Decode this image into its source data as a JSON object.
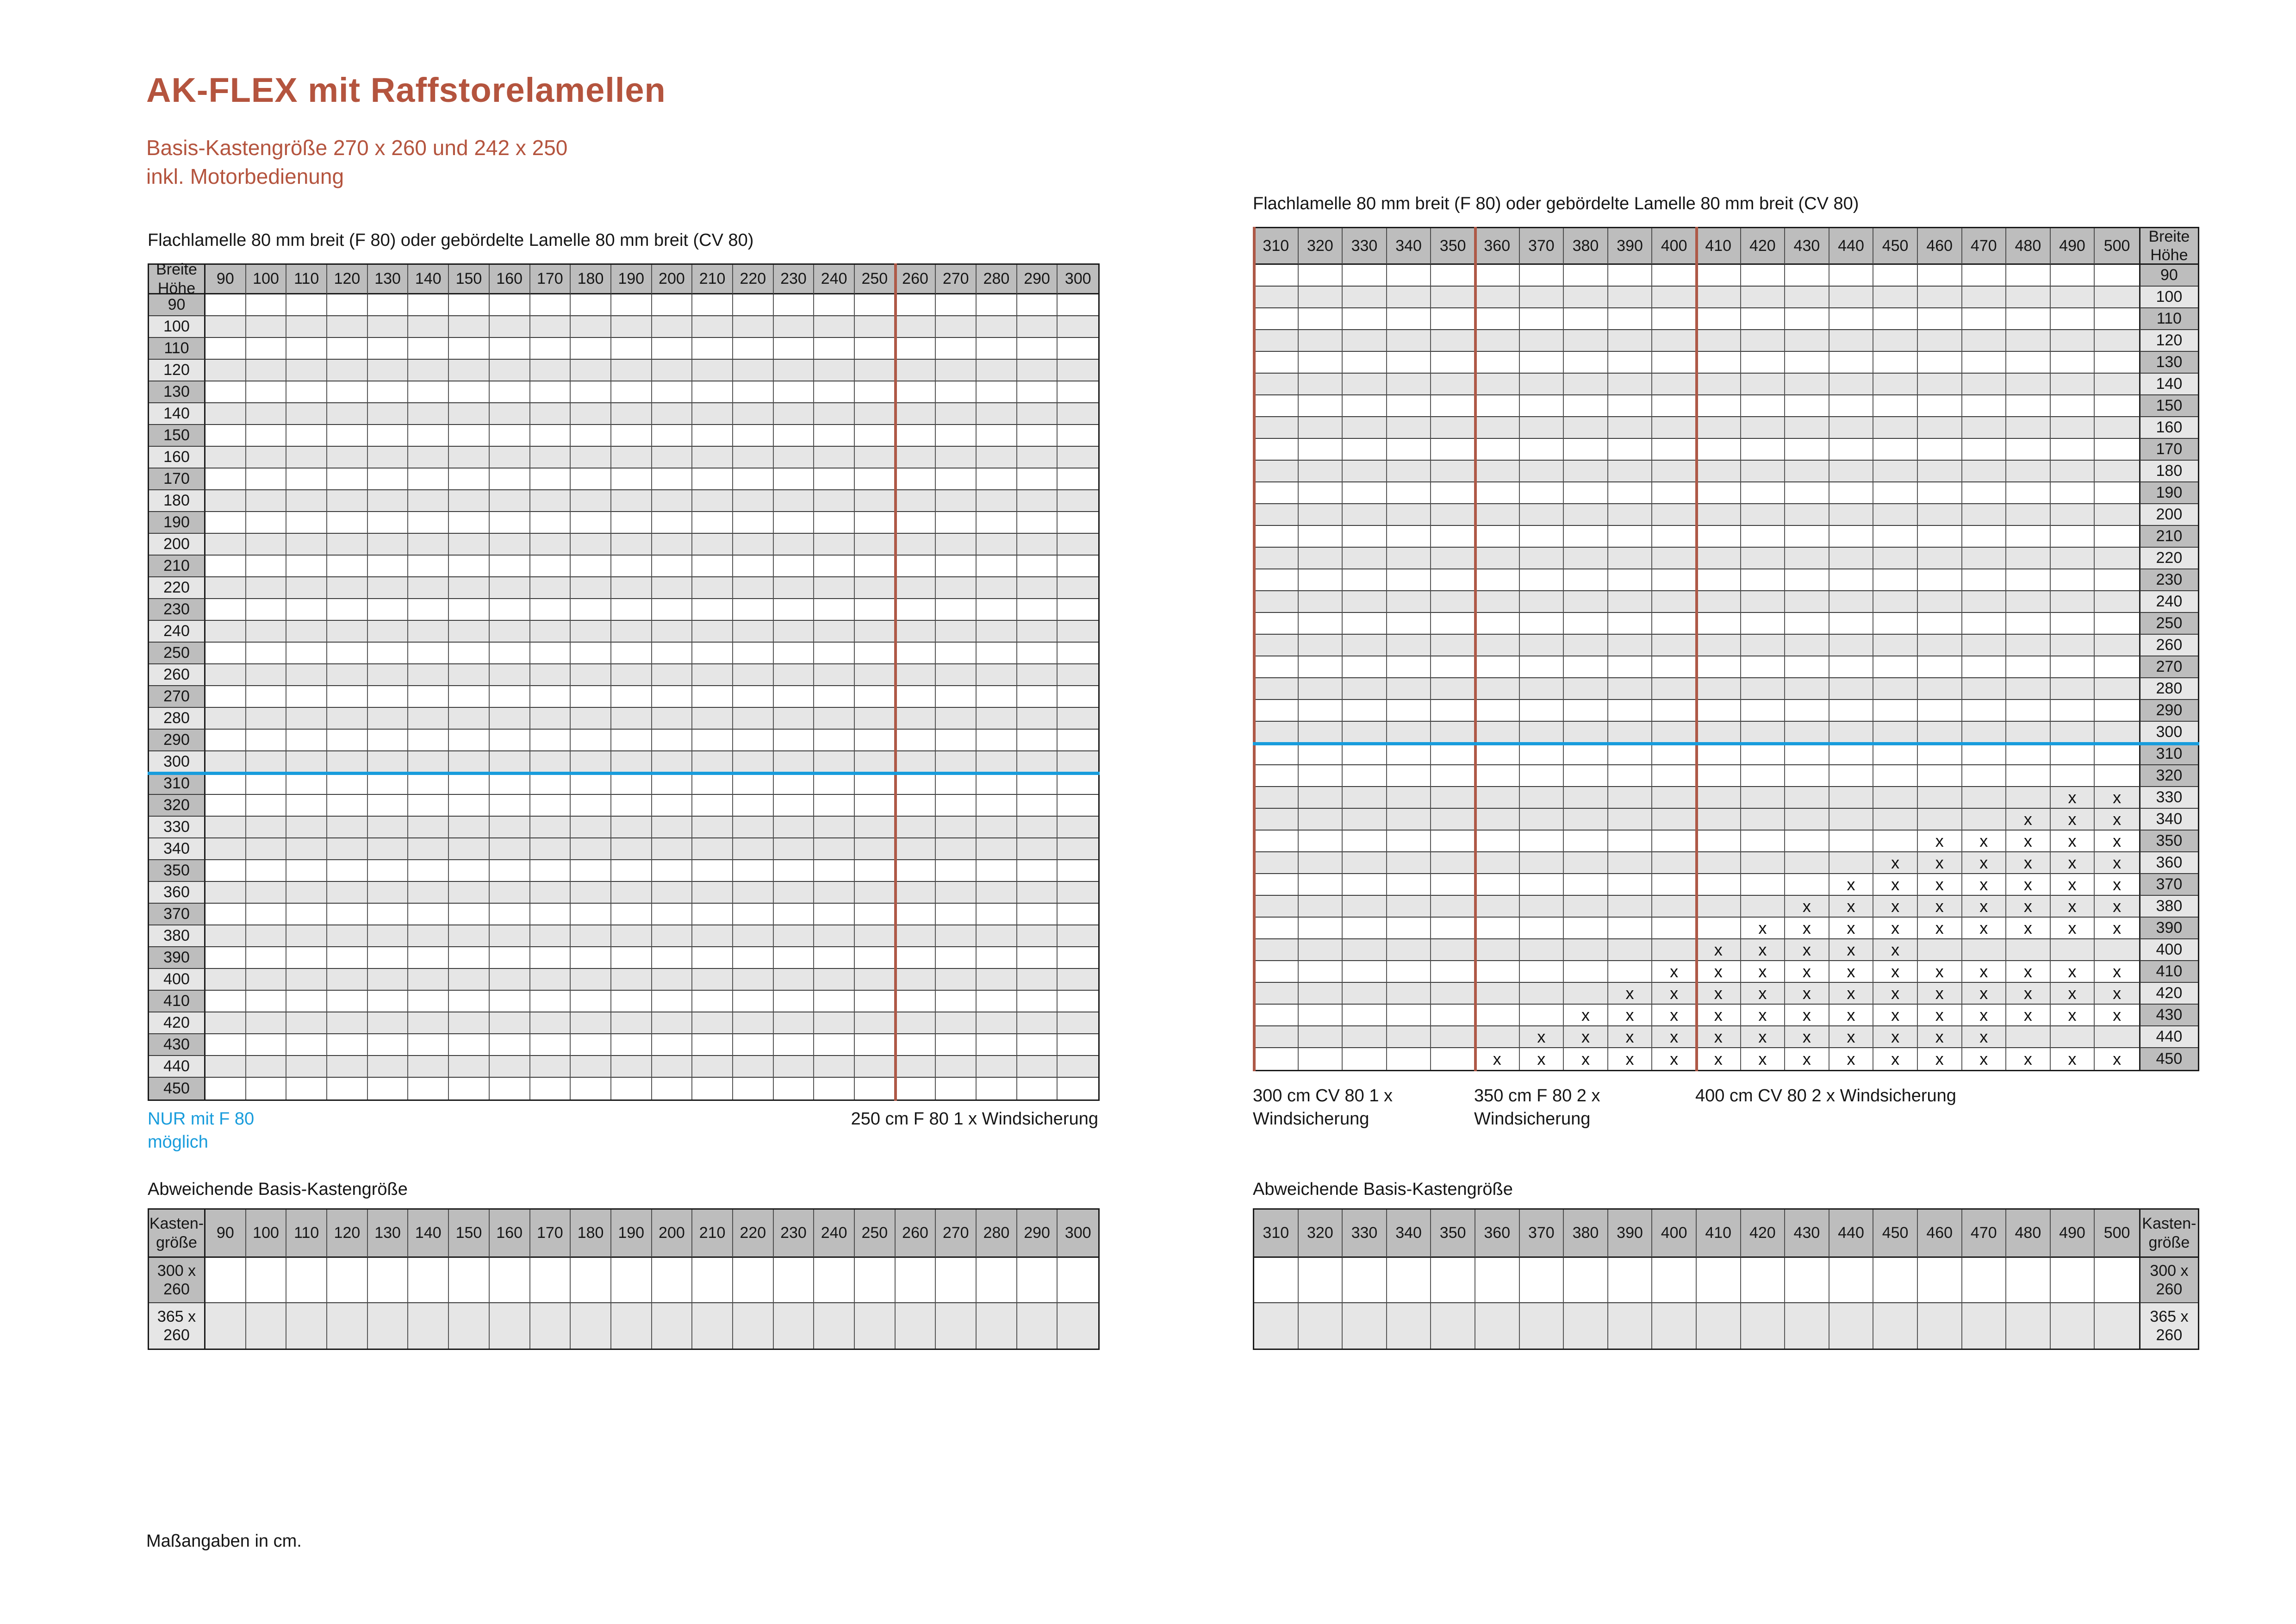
{
  "page": {
    "title": "AK-FLEX mit Raffstorelamellen",
    "subtitle": "Basis-Kastengröße 270 x 260 und 242 x 250\ninkl. Motorbedienung",
    "footer": "Maßangaben in cm."
  },
  "colors": {
    "accent": "#b4543e",
    "red_line": "#ae5947",
    "blue": "#189cdc",
    "header_gray": "#bdbdbd",
    "row_gray": "#e6e6e6"
  },
  "panels": {
    "left": {
      "table_title": "Flachlamelle 80 mm breit (F 80) oder gebördelte Lamelle 80 mm breit (CV 80)",
      "corner_label": "Breite\nHöhe",
      "columns": [
        "90",
        "100",
        "110",
        "120",
        "130",
        "140",
        "150",
        "160",
        "170",
        "180",
        "190",
        "200",
        "210",
        "220",
        "230",
        "240",
        "250",
        "260",
        "270",
        "280",
        "290",
        "300"
      ],
      "rows": [
        "90",
        "100",
        "110",
        "120",
        "130",
        "140",
        "150",
        "160",
        "170",
        "180",
        "190",
        "200",
        "210",
        "220",
        "230",
        "240",
        "250",
        "260",
        "270",
        "280",
        "290",
        "300",
        "310",
        "320",
        "330",
        "340",
        "350",
        "360",
        "370",
        "380",
        "390",
        "400",
        "410",
        "420",
        "430",
        "440",
        "450"
      ],
      "shaded_rows": [
        "100",
        "120",
        "140",
        "160",
        "180",
        "200",
        "220",
        "240",
        "260",
        "280",
        "300",
        "330",
        "340",
        "360",
        "380",
        "400",
        "420",
        "440"
      ],
      "blue_line_after_row": "300",
      "red_lines_after_cols": [
        "250"
      ],
      "red_line_left_edge": false,
      "marks": {},
      "notes": {
        "blue": "NUR mit F 80\nmöglich",
        "windsicherung": "250 cm F 80 1 x Windsicherung"
      },
      "sub_table": {
        "title": "Abweichende Basis-Kastengröße",
        "corner_label": "Kasten-\ngröße",
        "row_labels": [
          "300 x\n260",
          "365 x\n260"
        ],
        "shaded_row_labels": [
          "365 x\n260"
        ]
      }
    },
    "right": {
      "table_title": "Flachlamelle 80 mm breit (F 80) oder gebördelte Lamelle 80 mm breit (CV 80)",
      "corner_label": "Breite\nHöhe",
      "columns": [
        "310",
        "320",
        "330",
        "340",
        "350",
        "360",
        "370",
        "380",
        "390",
        "400",
        "410",
        "420",
        "430",
        "440",
        "450",
        "460",
        "470",
        "480",
        "490",
        "500"
      ],
      "rows": [
        "90",
        "100",
        "110",
        "120",
        "130",
        "140",
        "150",
        "160",
        "170",
        "180",
        "190",
        "200",
        "210",
        "220",
        "230",
        "240",
        "250",
        "260",
        "270",
        "280",
        "290",
        "300",
        "310",
        "320",
        "330",
        "340",
        "350",
        "360",
        "370",
        "380",
        "390",
        "400",
        "410",
        "420",
        "430",
        "440",
        "450"
      ],
      "shaded_rows": [
        "100",
        "120",
        "140",
        "160",
        "180",
        "200",
        "220",
        "240",
        "260",
        "280",
        "300",
        "330",
        "340",
        "360",
        "380",
        "400",
        "420",
        "440"
      ],
      "blue_line_after_row": "300",
      "red_lines_after_cols": [
        "350",
        "400"
      ],
      "red_line_left_edge": true,
      "marks": {
        "330": [
          "490",
          "500"
        ],
        "340": [
          "480",
          "490",
          "500"
        ],
        "350": [
          "460",
          "470",
          "480",
          "490",
          "500"
        ],
        "360": [
          "450",
          "460",
          "470",
          "480",
          "490",
          "500"
        ],
        "370": [
          "440",
          "450",
          "460",
          "470",
          "480",
          "490",
          "500"
        ],
        "380": [
          "430",
          "440",
          "450",
          "460",
          "470",
          "480",
          "490",
          "500"
        ],
        "390": [
          "420",
          "430",
          "440",
          "450",
          "460",
          "470",
          "480",
          "490",
          "500"
        ],
        "400": [
          "410",
          "420",
          "430",
          "440",
          "450"
        ],
        "410": [
          "400",
          "410",
          "420",
          "430",
          "440",
          "450",
          "460",
          "470",
          "480",
          "490",
          "500"
        ],
        "420": [
          "390",
          "400",
          "410",
          "420",
          "430",
          "440",
          "450",
          "460",
          "470",
          "480",
          "490",
          "500"
        ],
        "430": [
          "380",
          "390",
          "400",
          "410",
          "420",
          "430",
          "440",
          "450",
          "460",
          "470",
          "480",
          "490",
          "500"
        ],
        "440": [
          "370",
          "380",
          "390",
          "400",
          "410",
          "420",
          "430",
          "440",
          "450",
          "460",
          "470"
        ],
        "450": [
          "360",
          "370",
          "380",
          "390",
          "400",
          "410",
          "420",
          "430",
          "440",
          "450",
          "460",
          "470",
          "480",
          "490",
          "500"
        ]
      },
      "annotations": [
        {
          "text": "300 cm CV 80 1 x\nWindsicherung",
          "anchor_after_col": null
        },
        {
          "text": "350 cm F 80 2 x\nWindsicherung",
          "anchor_after_col": "350"
        },
        {
          "text": "400 cm CV 80 2 x Windsicherung",
          "anchor_after_col": "400"
        }
      ],
      "sub_table": {
        "title": "Abweichende Basis-Kastengröße",
        "corner_label": "Kasten-\ngröße",
        "row_labels": [
          "300 x\n260",
          "365 x\n260"
        ],
        "shaded_row_labels": [
          "365 x\n260"
        ]
      }
    }
  }
}
